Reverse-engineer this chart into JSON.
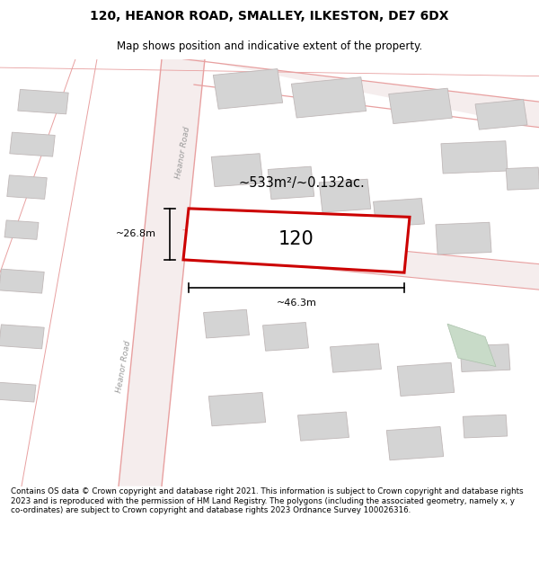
{
  "title": "120, HEANOR ROAD, SMALLEY, ILKESTON, DE7 6DX",
  "subtitle": "Map shows position and indicative extent of the property.",
  "footer": "Contains OS data © Crown copyright and database right 2021. This information is subject to Crown copyright and database rights 2023 and is reproduced with the permission of HM Land Registry. The polygons (including the associated geometry, namely x, y co-ordinates) are subject to Crown copyright and database rights 2023 Ordnance Survey 100026316.",
  "area_label": "~533m²/~0.132ac.",
  "width_label": "~46.3m",
  "height_label": "~26.8m",
  "house_number": "120",
  "bg_color": "#ffffff",
  "map_bg": "#faf4f4",
  "road_color": "#e8a0a0",
  "road_fill": "#f5eded",
  "building_color": "#d4d4d4",
  "building_edge": "#c0b8b8",
  "highlight_color": "#cc0000",
  "road_label": "Heanor Road",
  "green_patch_color": "#c8dbc8",
  "green_edge_color": "#aac0aa"
}
